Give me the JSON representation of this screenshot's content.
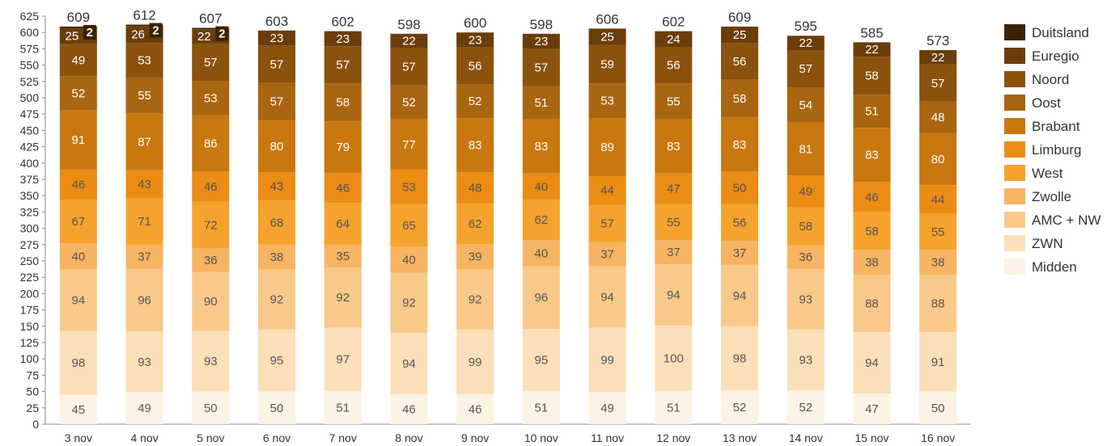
{
  "chart_data": {
    "type": "bar",
    "stacked": true,
    "title": "",
    "xlabel": "",
    "ylabel": "",
    "ylim": [
      0,
      625
    ],
    "yticks": [
      0,
      25,
      50,
      75,
      100,
      125,
      150,
      175,
      200,
      225,
      250,
      275,
      300,
      325,
      350,
      375,
      400,
      425,
      450,
      475,
      500,
      525,
      550,
      575,
      600,
      625
    ],
    "grid": false,
    "legend_position": "right",
    "categories": [
      "3 nov",
      "4 nov",
      "5 nov",
      "6 nov",
      "7 nov",
      "8 nov",
      "9 nov",
      "10 nov",
      "11 nov",
      "12 nov",
      "13 nov",
      "14 nov",
      "15 nov",
      "16 nov"
    ],
    "totals": [
      609,
      612,
      607,
      603,
      602,
      598,
      600,
      598,
      606,
      602,
      609,
      595,
      585,
      573
    ],
    "series": [
      {
        "name": "Midden",
        "color": "#fdf3e4",
        "values": [
          45,
          49,
          50,
          50,
          51,
          46,
          46,
          51,
          49,
          51,
          52,
          52,
          47,
          50
        ]
      },
      {
        "name": "ZWN",
        "color": "#fbdfb8",
        "values": [
          98,
          93,
          93,
          95,
          97,
          94,
          99,
          95,
          99,
          100,
          98,
          93,
          94,
          91
        ]
      },
      {
        "name": "AMC + NW",
        "color": "#f9c98a",
        "values": [
          94,
          96,
          90,
          92,
          92,
          92,
          92,
          96,
          94,
          94,
          94,
          93,
          88,
          88
        ]
      },
      {
        "name": "Zwolle",
        "color": "#f7b462",
        "values": [
          40,
          37,
          36,
          38,
          35,
          40,
          39,
          40,
          37,
          37,
          37,
          36,
          38,
          38
        ]
      },
      {
        "name": "West",
        "color": "#f5a32c",
        "values": [
          67,
          71,
          72,
          68,
          64,
          65,
          62,
          62,
          57,
          55,
          56,
          58,
          58,
          55
        ]
      },
      {
        "name": "Limburg",
        "color": "#ec8c15",
        "values": [
          46,
          43,
          46,
          43,
          46,
          53,
          48,
          40,
          44,
          47,
          50,
          49,
          46,
          44
        ]
      },
      {
        "name": "Brabant",
        "color": "#c9770f",
        "values": [
          91,
          87,
          86,
          80,
          79,
          77,
          83,
          83,
          89,
          83,
          83,
          81,
          83,
          80
        ]
      },
      {
        "name": "Oost",
        "color": "#a9650f",
        "values": [
          52,
          55,
          53,
          57,
          58,
          52,
          52,
          51,
          53,
          55,
          58,
          54,
          51,
          48
        ]
      },
      {
        "name": "Noord",
        "color": "#8a520d",
        "values": [
          49,
          53,
          57,
          57,
          57,
          57,
          56,
          57,
          59,
          56,
          56,
          57,
          58,
          57
        ]
      },
      {
        "name": "Euregio",
        "color": "#6b3d0a",
        "values": [
          25,
          26,
          22,
          23,
          23,
          22,
          23,
          23,
          25,
          24,
          25,
          22,
          22,
          22
        ]
      },
      {
        "name": "Duitsland",
        "color": "#3a2206",
        "values": [
          2,
          2,
          2,
          0,
          0,
          0,
          0,
          0,
          0,
          0,
          0,
          0,
          0,
          0
        ]
      }
    ]
  }
}
